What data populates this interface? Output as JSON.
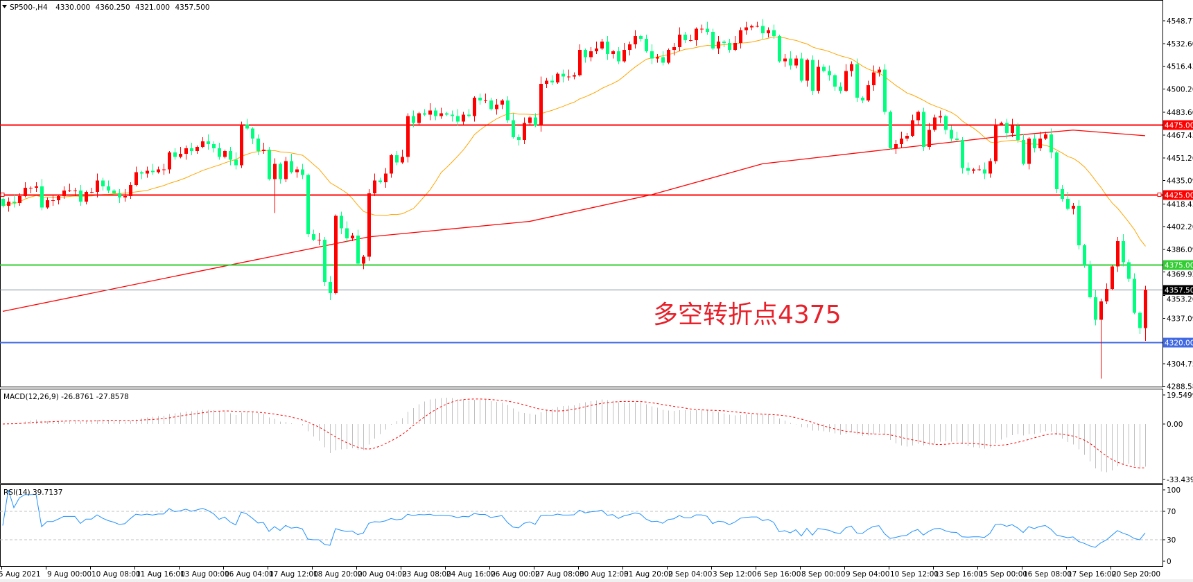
{
  "header": {
    "symbol": "SP500-,H4",
    "ohlc": [
      "4330.000",
      "4360.250",
      "4321.000",
      "4357.500"
    ]
  },
  "annotation": "多空转折点4375",
  "colors": {
    "bull": "#ff0000",
    "bear": "#00ff7f",
    "ma_fast": "#ffa500",
    "ma_slow": "#ff0000",
    "support_red": "#ff0000",
    "pivot_green": "#32cd32",
    "bid_gray": "#778899",
    "support_blue": "#4169e1",
    "macd_hist": "#c0c0c0",
    "macd_signal": "#ff0000",
    "rsi": "#1e90ff"
  },
  "price_axis": {
    "ticks": [
      "4548.770",
      "4532.600",
      "4516.430",
      "4500.260",
      "4483.600",
      "4467.430",
      "4451.260",
      "4435.090",
      "4418.430",
      "4402.260",
      "4386.090",
      "4369.920",
      "4353.260",
      "4337.090",
      "4304.750",
      "4288.580"
    ],
    "range": [
      4288.58,
      4548.77
    ]
  },
  "levels": [
    {
      "price": 4475,
      "label": "4475.000",
      "color": "#ff0000",
      "kind": "resistance"
    },
    {
      "price": 4425,
      "label": "4425.000",
      "color": "#ff0000",
      "kind": "resistance"
    },
    {
      "price": 4375,
      "label": "4375.000",
      "color": "#32cd32",
      "kind": "pivot"
    },
    {
      "price": 4357.5,
      "label": "4357.500",
      "color": "#000000",
      "kind": "bid"
    },
    {
      "price": 4320,
      "label": "4320.000",
      "color": "#4169e1",
      "kind": "support"
    }
  ],
  "time_axis": [
    "5 Aug 2021",
    "9 Aug 00:00",
    "10 Aug 08:00",
    "11 Aug 16:00",
    "13 Aug 00:00",
    "16 Aug 04:00",
    "17 Aug 12:00",
    "18 Aug 20:00",
    "20 Aug 04:00",
    "23 Aug 08:00",
    "24 Aug 16:00",
    "26 Aug 00:00",
    "27 Aug 08:00",
    "30 Aug 12:00",
    "31 Aug 20:00",
    "2 Sep 04:00",
    "3 Sep 12:00",
    "6 Sep 16:00",
    "8 Sep 00:00",
    "9 Sep 04:00",
    "10 Sep 12:00",
    "13 Sep 16:00",
    "15 Sep 00:00",
    "16 Sep 08:00",
    "17 Sep 16:00",
    "20 Sep 20:00"
  ],
  "macd": {
    "label": "MACD(12,26,9) -26.8761 -27.8578",
    "ticks": [
      "19.5499",
      "0.00",
      "-33.4394"
    ],
    "range": [
      -33.4394,
      19.5499
    ]
  },
  "rsi": {
    "label": "RSI(14) 39.7137",
    "ticks": [
      "100",
      "70",
      "30",
      "0"
    ],
    "levels": [
      70,
      30
    ]
  },
  "chart_data": {
    "type": "candlestick",
    "timeframe": "H4",
    "first_open": 4422,
    "closes": [
      4417,
      4420,
      4419,
      4424,
      4430,
      4430,
      4431,
      4416,
      4421,
      4421,
      4424,
      4428,
      4428,
      4428,
      4420,
      4427,
      4427,
      4435,
      4431,
      4428,
      4426,
      4423,
      4424,
      4432,
      4441,
      4440,
      4442,
      4441,
      4443,
      4443,
      4455,
      4452,
      4454,
      4458,
      4456,
      4459,
      4463,
      4461,
      4458,
      4452,
      4456,
      4450,
      4446,
      4475,
      4472,
      4465,
      4456,
      4457,
      4436,
      4447,
      4436,
      4449,
      4441,
      4443,
      4439,
      4397,
      4393,
      4393,
      4363,
      4355,
      4410,
      4401,
      4394,
      4396,
      4376,
      4381,
      4426,
      4435,
      4434,
      4440,
      4453,
      4448,
      4452,
      4481,
      4476,
      4483,
      4482,
      4485,
      4481,
      4483,
      4482,
      4481,
      4477,
      4482,
      4481,
      4494,
      4492,
      4492,
      4486,
      4489,
      4492,
      4478,
      4466,
      4464,
      4476,
      4480,
      4474,
      4504,
      4506,
      4505,
      4511,
      4509,
      4509,
      4510,
      4528,
      4523,
      4527,
      4529,
      4534,
      4525,
      4527,
      4520,
      4528,
      4532,
      4538,
      4536,
      4527,
      4522,
      4523,
      4519,
      4528,
      4530,
      4539,
      4535,
      4535,
      4543,
      4543,
      4541,
      4529,
      4534,
      4533,
      4528,
      4533,
      4542,
      4544,
      4545,
      4545,
      4540,
      4542,
      4538,
      4520,
      4522,
      4517,
      4522,
      4506,
      4521,
      4499,
      4516,
      4513,
      4510,
      4502,
      4499,
      4513,
      4518,
      4494,
      4492,
      4503,
      4512,
      4514,
      4484,
      4458,
      4461,
      4465,
      4467,
      4478,
      4484,
      4459,
      4471,
      4480,
      4481,
      4471,
      4465,
      4464,
      4444,
      4442,
      4443,
      4443,
      4440,
      4449,
      4475,
      4476,
      4469,
      4474,
      4464,
      4447,
      4465,
      4458,
      4465,
      4468,
      4455,
      4429,
      4422,
      4415,
      4417,
      4389,
      4375,
      4352,
      4336,
      4349,
      4358,
      4374,
      4392,
      4377,
      4365,
      4341,
      4330,
      4357.5
    ],
    "last_bar": {
      "open": 4330,
      "high": 4360.25,
      "low": 4321,
      "close": 4357.5
    },
    "wick_lows": [
      {
        "bar": 198,
        "low": 4294
      },
      {
        "bar": 49,
        "low": 4412
      },
      {
        "bar": 59,
        "low": 4350
      }
    ],
    "ma_fast_period": 20,
    "ma_slow_points": [
      [
        0,
        4342
      ],
      [
        41,
        4375
      ],
      [
        66,
        4395
      ],
      [
        95,
        4406
      ],
      [
        117,
        4425
      ],
      [
        137,
        4447
      ],
      [
        179,
        4466
      ],
      [
        193,
        4471
      ],
      [
        206,
        4467
      ]
    ]
  }
}
